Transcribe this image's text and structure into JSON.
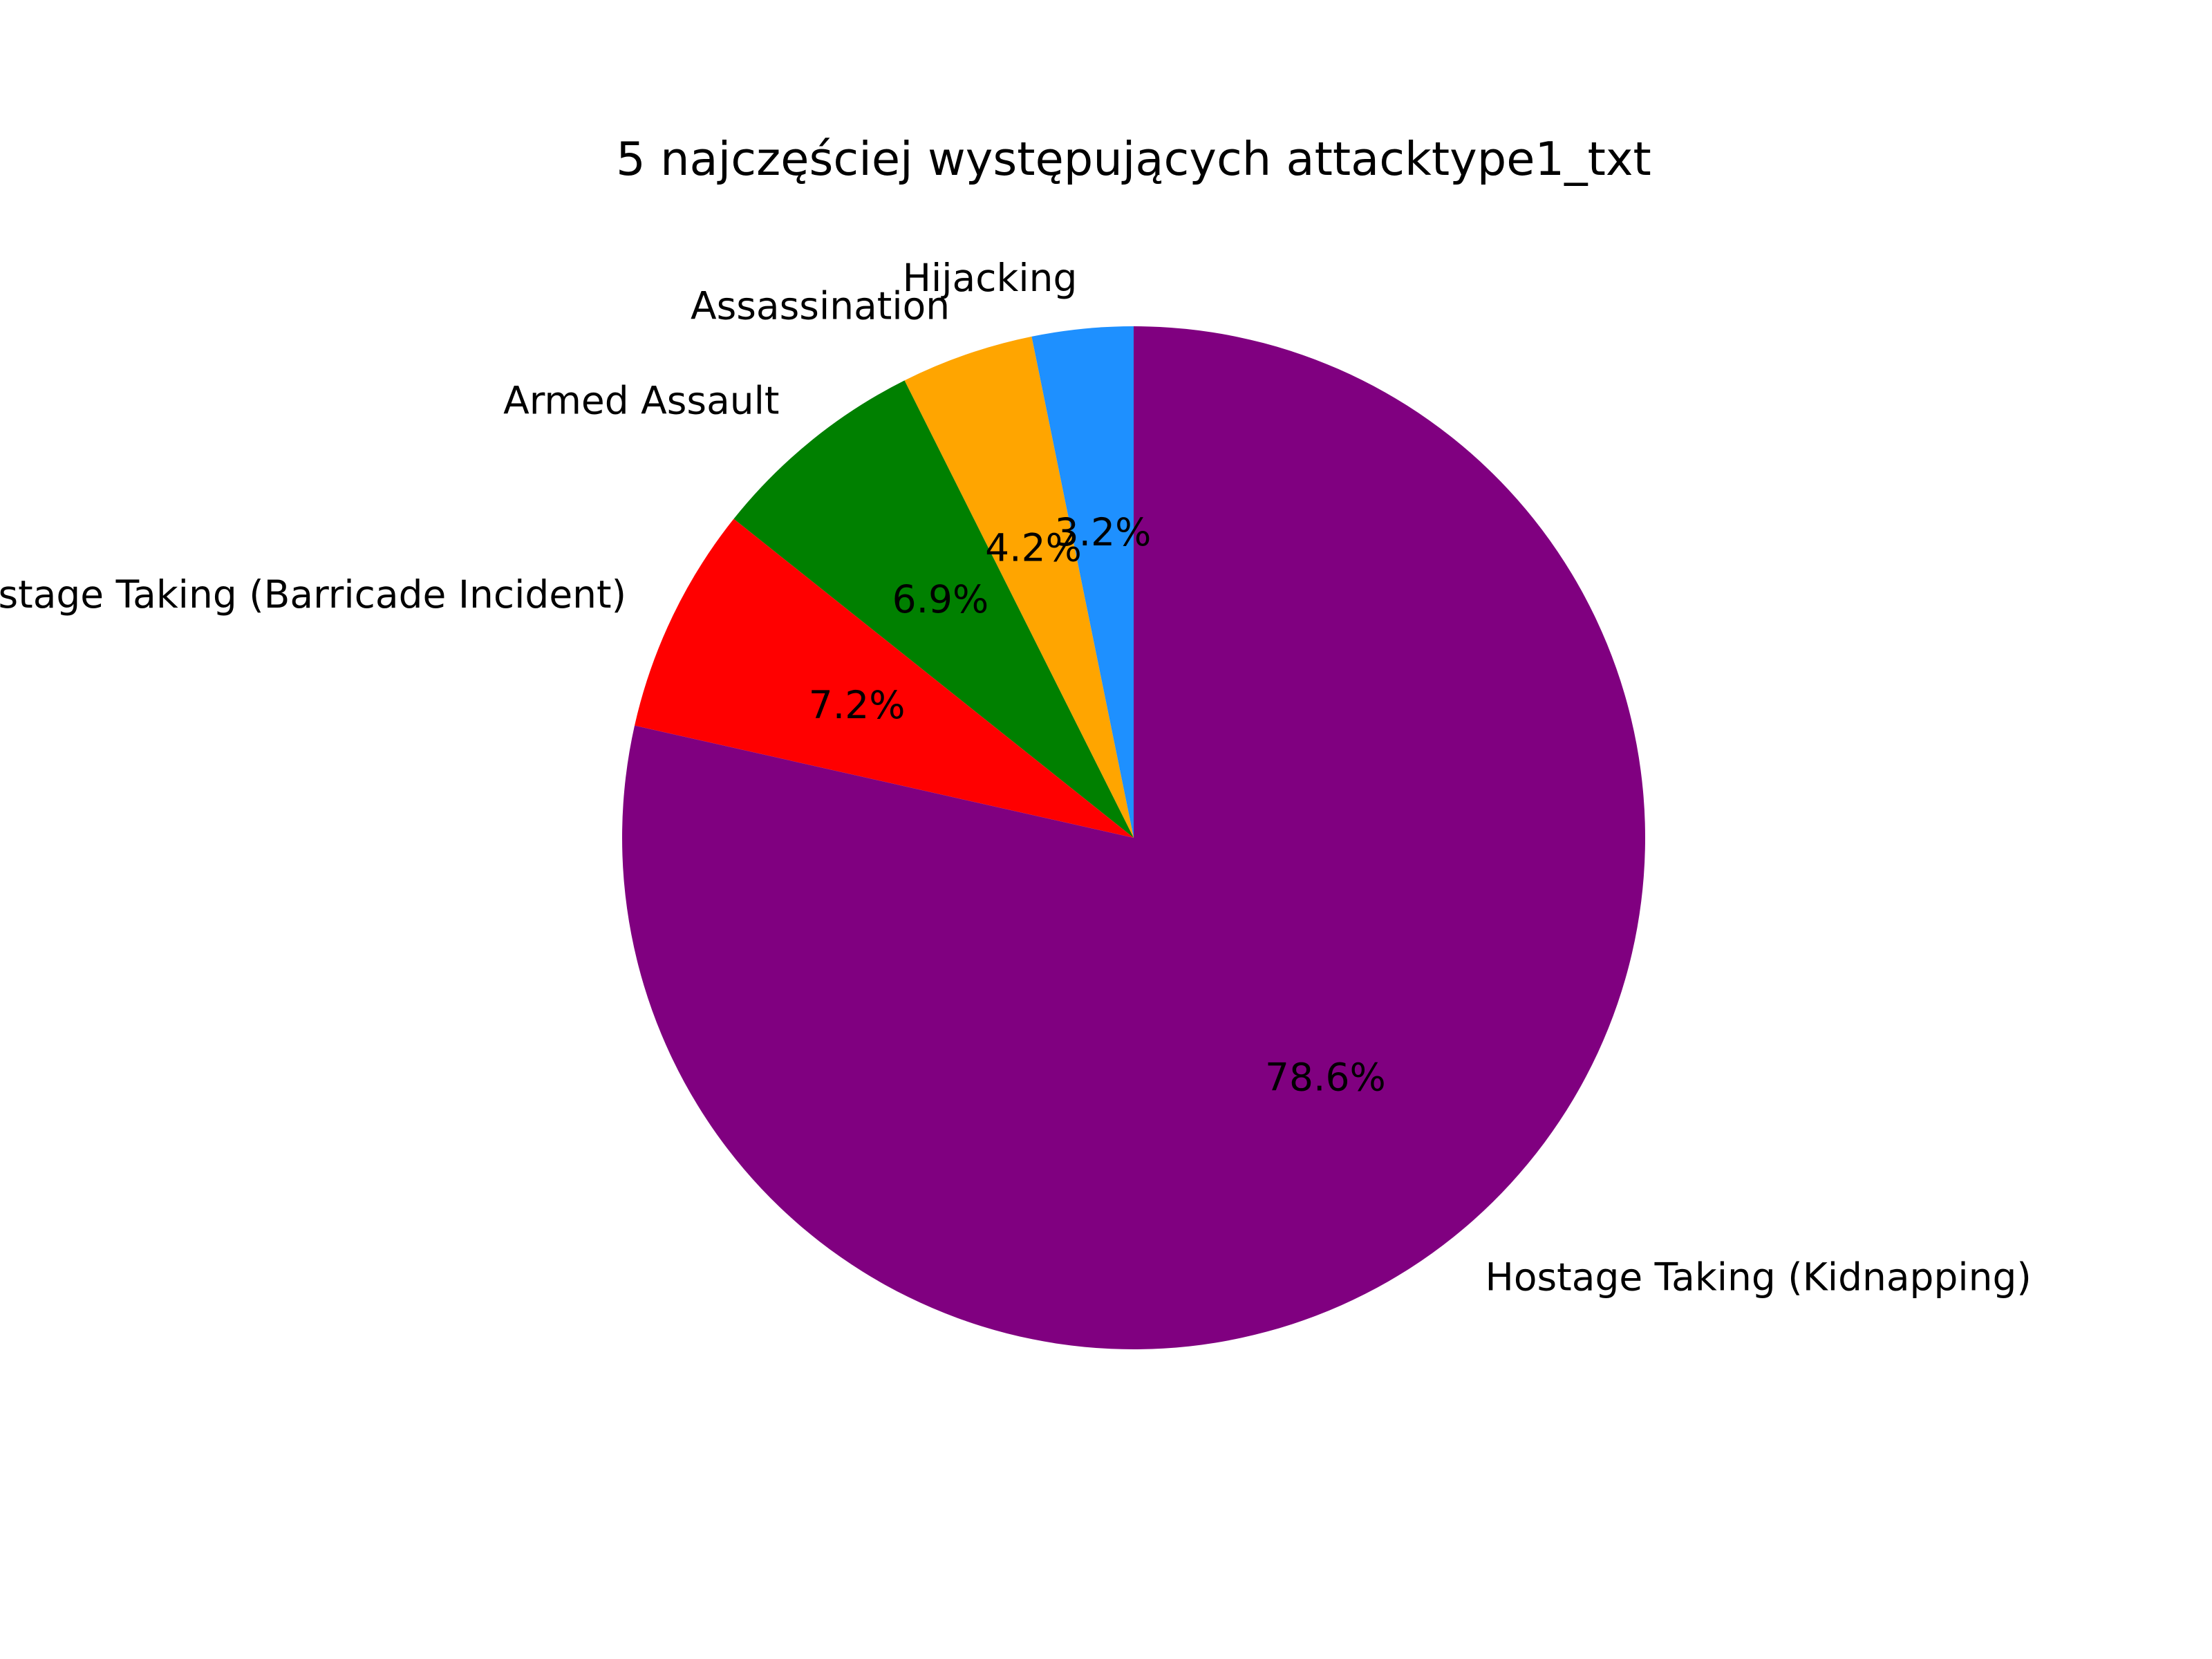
{
  "chart_data": {
    "type": "pie",
    "title": "5 najczęściej występujących attacktype1_txt",
    "labels": [
      "Hijacking",
      "Assassination",
      "Armed Assault",
      "Hostage Taking (Barricade Incident)",
      "Hostage Taking (Kidnapping)"
    ],
    "values": [
      3.2,
      4.2,
      6.9,
      7.2,
      78.6
    ],
    "percent_labels": [
      "3.2%",
      "4.2%",
      "6.9%",
      "7.2%",
      "78.6%"
    ],
    "colors": [
      "#1e90ff",
      "#ffa500",
      "#008000",
      "#ff0000",
      "#800080"
    ],
    "start_angle": 90,
    "direction": "counterclockwise-from-right",
    "legend": "none"
  }
}
